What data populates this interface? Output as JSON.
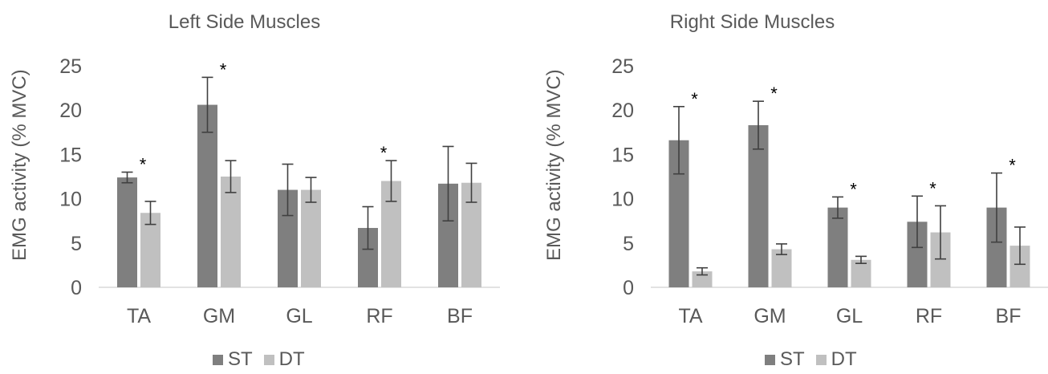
{
  "chart_data": [
    {
      "type": "bar",
      "title": "Left Side Muscles",
      "ylabel": "EMG activity (% MVC)",
      "xlabel": "",
      "ylim": [
        0,
        25
      ],
      "yticks": [
        0,
        5,
        10,
        15,
        20,
        25
      ],
      "categories": [
        "TA",
        "GM",
        "GL",
        "RF",
        "BF"
      ],
      "series": [
        {
          "name": "ST",
          "color": "#7f7f7f",
          "values": [
            12.4,
            20.6,
            11.0,
            6.7,
            11.7
          ],
          "errors": [
            0.6,
            3.1,
            2.9,
            2.4,
            4.2
          ]
        },
        {
          "name": "DT",
          "color": "#c0c0c0",
          "values": [
            8.4,
            12.5,
            11.0,
            12.0,
            11.8
          ],
          "errors": [
            1.3,
            1.8,
            1.4,
            2.3,
            2.2
          ]
        }
      ],
      "annotations": [
        {
          "category": "TA",
          "text": "*"
        },
        {
          "category": "GM",
          "text": "*"
        },
        {
          "category": "RF",
          "text": "*"
        }
      ],
      "legend": "bottom"
    },
    {
      "type": "bar",
      "title": "Right Side Muscles",
      "ylabel": "EMG activity (% MVC)",
      "xlabel": "",
      "ylim": [
        0,
        25
      ],
      "yticks": [
        0,
        5,
        10,
        15,
        20,
        25
      ],
      "categories": [
        "TA",
        "GM",
        "GL",
        "RF",
        "BF"
      ],
      "series": [
        {
          "name": "ST",
          "color": "#7f7f7f",
          "values": [
            16.6,
            18.3,
            9.0,
            7.4,
            9.0
          ],
          "errors": [
            3.8,
            2.7,
            1.2,
            2.9,
            3.9
          ]
        },
        {
          "name": "DT",
          "color": "#c0c0c0",
          "values": [
            1.8,
            4.3,
            3.1,
            6.2,
            4.7
          ],
          "errors": [
            0.4,
            0.6,
            0.4,
            3.0,
            2.1
          ]
        }
      ],
      "annotations": [
        {
          "category": "TA",
          "text": "*"
        },
        {
          "category": "GM",
          "text": "*"
        },
        {
          "category": "GL",
          "text": "*"
        },
        {
          "category": "RF",
          "text": "*"
        },
        {
          "category": "BF",
          "text": "*"
        }
      ],
      "legend": "bottom"
    }
  ]
}
